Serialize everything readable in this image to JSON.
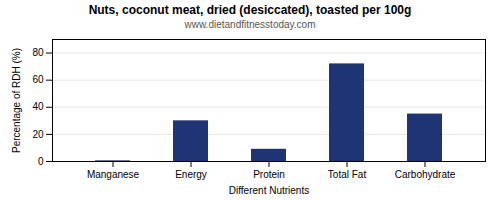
{
  "chart_data": {
    "type": "bar",
    "title": "Nuts, coconut meat, dried (desiccated), toasted per 100g",
    "subtitle": "www.dietandfitnesstoday.com",
    "xlabel": "Different Nutrients",
    "ylabel": "Percentage of RDH (%)",
    "categories": [
      "Manganese",
      "Energy",
      "Protein",
      "Total Fat",
      "Carbohydrate"
    ],
    "values": [
      0.5,
      30,
      9,
      72,
      35
    ],
    "color": "#1f3475",
    "ylim": [
      0,
      90
    ],
    "yticks": [
      0,
      20,
      40,
      60,
      80
    ],
    "grid": true
  }
}
